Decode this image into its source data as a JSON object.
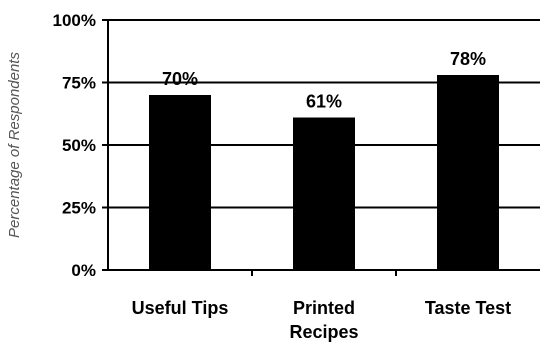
{
  "chart_data": {
    "type": "bar",
    "categories": [
      "Useful Tips",
      "Printed\nRecipes",
      "Taste Test"
    ],
    "values": [
      70,
      61,
      78
    ],
    "data_labels": [
      "70%",
      "61%",
      "78%"
    ],
    "title": "",
    "xlabel": "",
    "ylabel": "Percentage of Respondents",
    "ylim": [
      0,
      100
    ],
    "yticks": [
      0,
      25,
      50,
      75,
      100
    ],
    "ytick_labels": [
      "0%",
      "25%",
      "50%",
      "75%",
      "100%"
    ],
    "grid": true,
    "bar_color": "#000000",
    "grid_color": "#000000"
  }
}
